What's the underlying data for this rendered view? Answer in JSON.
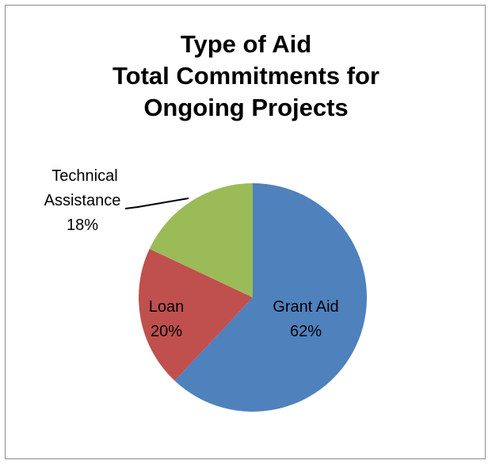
{
  "chart_data": {
    "type": "pie",
    "title_lines": [
      "Type of Aid",
      "Total Commitments for",
      "Ongoing Projects"
    ],
    "slices": [
      {
        "name": "Grant Aid",
        "percent_label": "62%",
        "value": 62,
        "color": "#4f81bd"
      },
      {
        "name": "Loan",
        "percent_label": "20%",
        "value": 20,
        "color": "#c0504d"
      },
      {
        "name": "Technical Assistance",
        "name_lines": [
          "Technical",
          "Assistance"
        ],
        "percent_label": "18%",
        "value": 18,
        "color": "#9bbb59"
      }
    ],
    "start_angle_deg": 0,
    "direction": "clockwise",
    "legend": "none"
  }
}
